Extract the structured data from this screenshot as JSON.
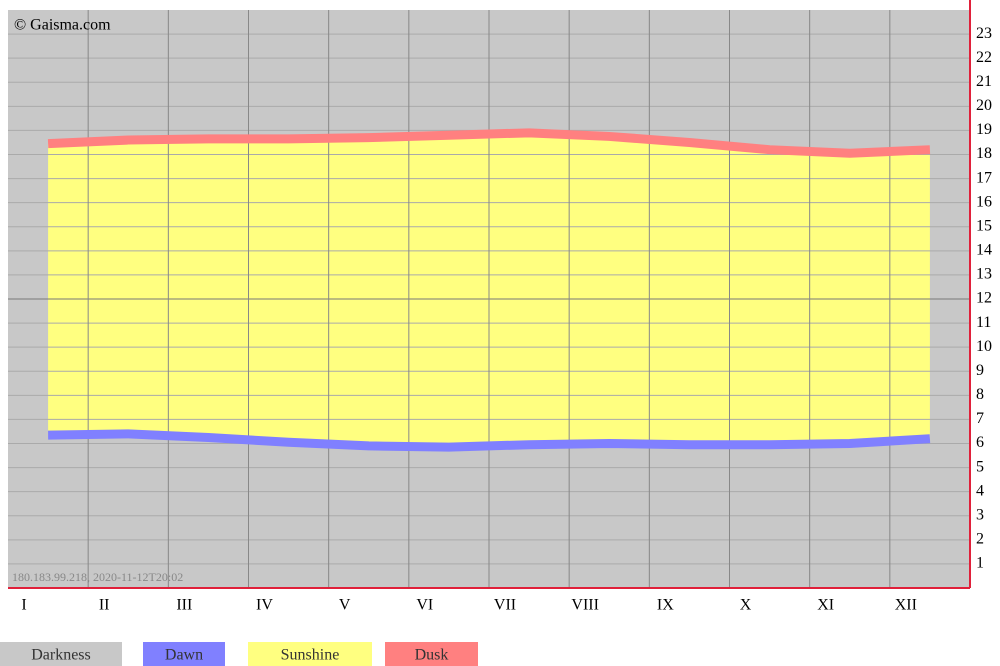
{
  "chart_data": {
    "type": "area",
    "credit": "© Gaisma.com",
    "stamp": "180.183.99.218, 2020-11-12T20:02",
    "categories": [
      "I",
      "II",
      "III",
      "IV",
      "V",
      "VI",
      "VII",
      "VIII",
      "IX",
      "X",
      "XI",
      "XII"
    ],
    "series": [
      {
        "name": "Dawn",
        "color": "#8080ff",
        "values": [
          6.35,
          6.4,
          6.25,
          6.05,
          5.9,
          5.85,
          5.95,
          6.0,
          5.95,
          5.95,
          6.0,
          6.2
        ]
      },
      {
        "name": "Dusk",
        "color": "#ff8080",
        "values": [
          18.45,
          18.6,
          18.65,
          18.65,
          18.7,
          18.8,
          18.9,
          18.75,
          18.5,
          18.2,
          18.05,
          18.2
        ]
      }
    ],
    "darkness": {
      "name": "Darkness",
      "color": "#c8c8c8"
    },
    "sunshine": {
      "name": "Sunshine",
      "color": "#ffff80"
    },
    "ylim": [
      0,
      24
    ],
    "yticks": [
      1,
      2,
      3,
      4,
      5,
      6,
      7,
      8,
      9,
      10,
      11,
      12,
      13,
      14,
      15,
      16,
      17,
      18,
      19,
      20,
      21,
      22,
      23
    ],
    "grid": true
  }
}
